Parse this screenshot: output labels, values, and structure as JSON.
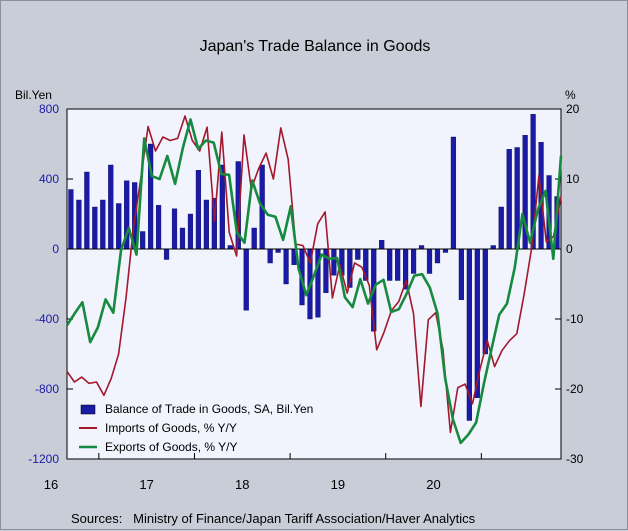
{
  "chart_data": {
    "type": "bar+line",
    "title": "Japan's Trade Balance in Goods",
    "left_axis": {
      "unit": "Bil.Yen",
      "ylim": [
        -1200,
        800
      ],
      "ticks": [
        800,
        400,
        0,
        -400,
        -800,
        -1200
      ]
    },
    "right_axis": {
      "unit": "%",
      "ylim": [
        -30,
        20
      ],
      "ticks": [
        20,
        10,
        0,
        -10,
        -20,
        -30
      ]
    },
    "x_ticks": [
      "16",
      "17",
      "18",
      "19",
      "20"
    ],
    "x_range": [
      2015.667,
      2020.833
    ],
    "source": "Sources:   Ministry of Finance/Japan Tariff Association/Haver Analytics",
    "series": [
      {
        "name": "Balance of Trade in Goods, SA, Bil.Yen",
        "type": "bar",
        "axis": "left",
        "color": "#1a1aa6",
        "values": [
          340,
          280,
          440,
          240,
          280,
          480,
          260,
          390,
          380,
          100,
          600,
          250,
          -60,
          230,
          120,
          200,
          450,
          280,
          290,
          480,
          20,
          500,
          -350,
          120,
          480,
          -80,
          -20,
          -200,
          -90,
          -320,
          -400,
          -390,
          -250,
          -150,
          -150,
          -220,
          -60,
          -180,
          -470,
          50,
          -180,
          -180,
          -230,
          -140,
          20,
          -140,
          -80,
          -20,
          640,
          -290,
          -980,
          -850,
          -600,
          20,
          240,
          570,
          580,
          650,
          770,
          610,
          420,
          300
        ]
      },
      {
        "name": "Imports of Goods, % Y/Y",
        "type": "line",
        "axis": "right",
        "color": "#a3182c",
        "values": [
          -17.5,
          -19,
          -18.3,
          -19.2,
          -19,
          -20.9,
          -18.5,
          -15,
          -7,
          3,
          10,
          17.5,
          14,
          16,
          15.5,
          15.8,
          19,
          15.5,
          14,
          17.4,
          4,
          16.7,
          2.4,
          -1,
          16.3,
          8.6,
          11.5,
          13.7,
          10,
          17.3,
          12.8,
          0.7,
          0.5,
          -2,
          3.6,
          5.3,
          -7,
          -2.3,
          -6.3,
          -2,
          -2.6,
          -5.2,
          -14.4,
          -11.9,
          -8.8,
          -7.5,
          -4.5,
          -9.2,
          -22.5,
          -10.1,
          -9.1,
          -14.4,
          -26.2,
          -19.8,
          -19.3,
          -22.1,
          -17.2,
          -13.1,
          -16.8,
          -14.5,
          -13.1,
          -12.1,
          -6.5,
          0,
          10.5,
          1,
          1.8,
          7.5
        ]
      },
      {
        "name": "Exports of Goods, % Y/Y",
        "type": "line",
        "axis": "right",
        "color": "#168a3e",
        "values": [
          -10.9,
          -9.2,
          -7.6,
          -13.3,
          -11.2,
          -7.2,
          -9.1,
          -0.2,
          3,
          -0.8,
          15.8,
          10.4,
          10,
          13.3,
          9.3,
          14.4,
          18.5,
          14.3,
          15.5,
          15.2,
          10.7,
          10.6,
          2.4,
          0.9,
          9.8,
          6.5,
          4.9,
          4.6,
          1.3,
          6.1,
          -2.8,
          -6.6,
          -3.8,
          -0.8,
          -1.4,
          -1.3,
          -6.9,
          -8.3,
          -4.3,
          -7.8,
          -5.1,
          -4.4,
          -9.0,
          -8.6,
          -6.4,
          -3.8,
          -3.6,
          -5.5,
          -9.2,
          -18.5,
          -24.3,
          -27.7,
          -26.5,
          -24.8,
          -19.3,
          -14.3,
          -9.4,
          -7.8,
          -2.7,
          5.0,
          0.9,
          5.6,
          8.3,
          -1.4,
          13.3
        ]
      }
    ],
    "legend_placement": "bottom-left",
    "grid": false
  }
}
